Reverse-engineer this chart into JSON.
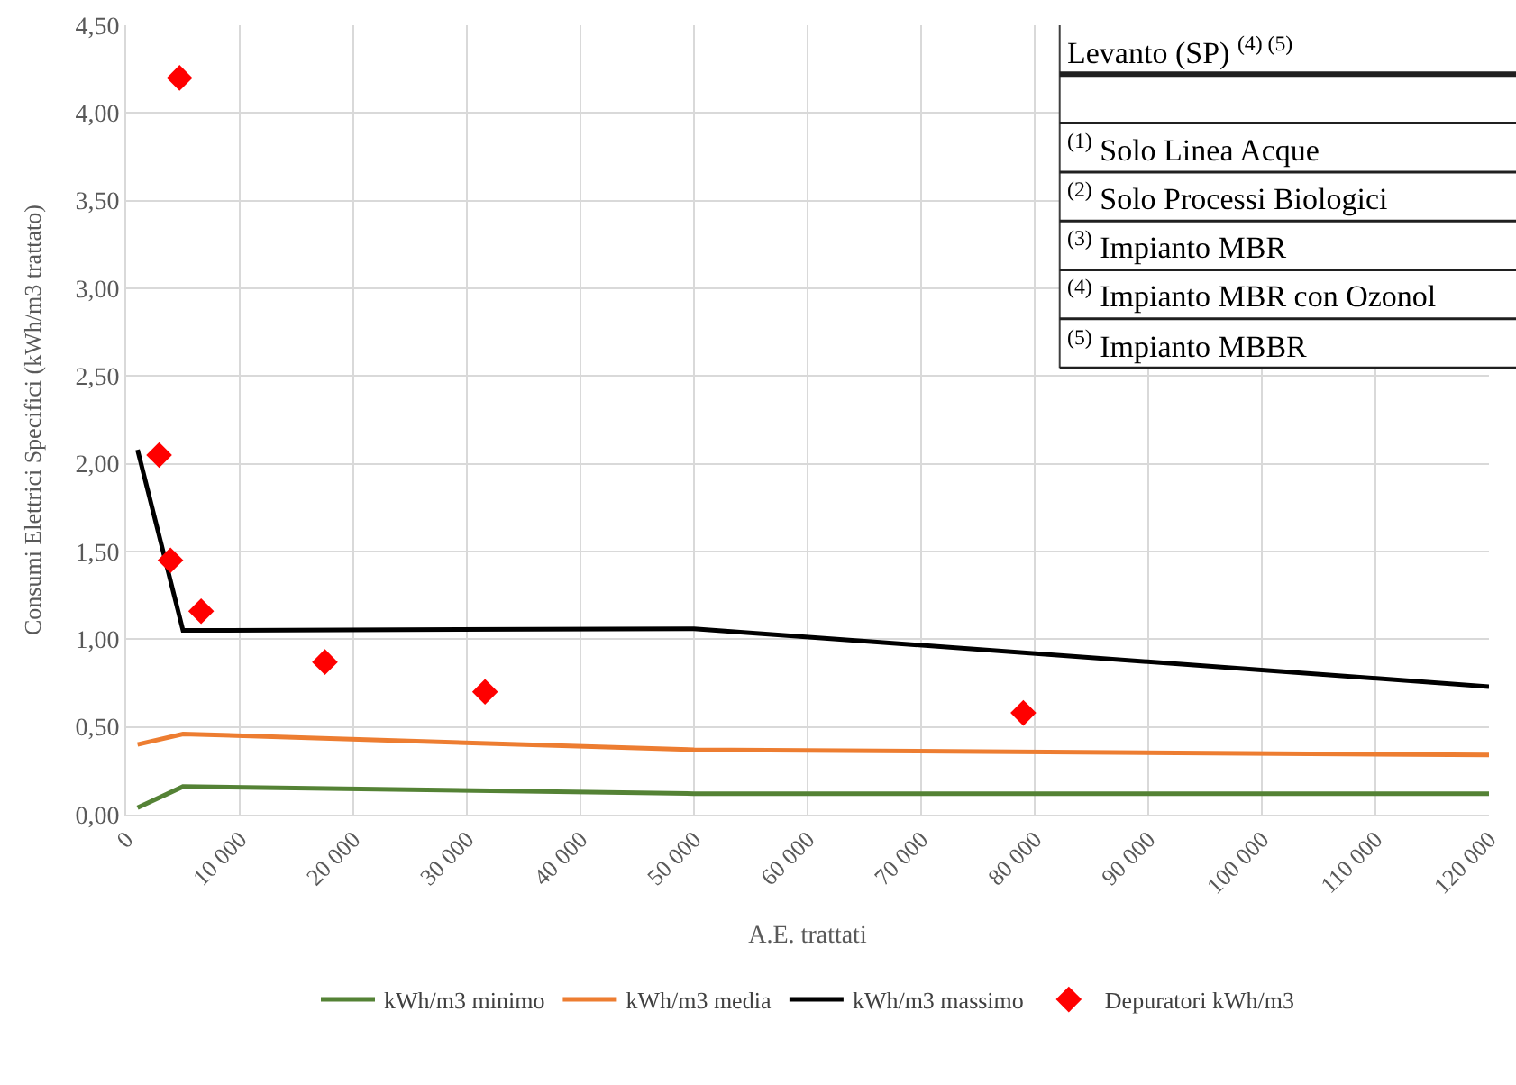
{
  "chart_data": {
    "type": "line",
    "xlabel": "A.E. trattati",
    "ylabel": "Consumi Elettrici Specifici (kWh/m3 trattato)",
    "series": [
      {
        "name": "kWh/m3 minimo",
        "color": "#548235",
        "x": [
          1000,
          5000,
          50000,
          120000
        ],
        "values": [
          0.04,
          0.16,
          0.12,
          0.12
        ]
      },
      {
        "name": "kWh/m3 media",
        "color": "#ed7d31",
        "x": [
          1000,
          5000,
          50000,
          120000
        ],
        "values": [
          0.4,
          0.46,
          0.37,
          0.34
        ]
      },
      {
        "name": "kWh/m3 massimo",
        "color": "#000000",
        "x": [
          1000,
          5000,
          50000,
          120000
        ],
        "values": [
          2.08,
          1.05,
          1.06,
          0.73
        ]
      },
      {
        "name": "Depuratori kWh/m3",
        "type": "scatter",
        "marker": "diamond",
        "color": "#ff0000",
        "x": [
          2900,
          3900,
          4700,
          6600,
          17500,
          31600,
          79000
        ],
        "values": [
          2.05,
          1.45,
          4.2,
          1.16,
          0.87,
          0.7,
          0.58
        ]
      }
    ],
    "xlim": [
      0,
      120000
    ],
    "xticks": [
      {
        "value": 0,
        "label": "0"
      },
      {
        "value": 10000,
        "label": "10 000"
      },
      {
        "value": 20000,
        "label": "20 000"
      },
      {
        "value": 30000,
        "label": "30 000"
      },
      {
        "value": 40000,
        "label": "40 000"
      },
      {
        "value": 50000,
        "label": "50 000"
      },
      {
        "value": 60000,
        "label": "60 000"
      },
      {
        "value": 70000,
        "label": "70 000"
      },
      {
        "value": 80000,
        "label": "80 000"
      },
      {
        "value": 90000,
        "label": "90 000"
      },
      {
        "value": 100000,
        "label": "100 000"
      },
      {
        "value": 110000,
        "label": "110 000"
      },
      {
        "value": 120000,
        "label": "120 000"
      }
    ],
    "ylim": [
      0,
      4.5
    ],
    "yticks": [
      {
        "value": 0,
        "label": "0,00"
      },
      {
        "value": 0.5,
        "label": "0,50"
      },
      {
        "value": 1,
        "label": "1,00"
      },
      {
        "value": 1.5,
        "label": "1,50"
      },
      {
        "value": 2,
        "label": "2,00"
      },
      {
        "value": 2.5,
        "label": "2,50"
      },
      {
        "value": 3,
        "label": "3,00"
      },
      {
        "value": 3.5,
        "label": "3,50"
      },
      {
        "value": 4,
        "label": "4,00"
      },
      {
        "value": 4.5,
        "label": "4,50"
      }
    ],
    "grid": true,
    "legend": "bottom",
    "line_style": "solid",
    "annotations": [
      "Levanto (SP) $^{(4) (5)}$",
      "$^{(1)}$ Solo Linea Acque",
      "$^{(2)}$ Solo Processi Biologici",
      "$^{(3)}$ Impianto MBR",
      "$^{(4)}$ Impianto MBR con Ozonol",
      "$^{(5)}$ Impianto MBBR"
    ]
  }
}
